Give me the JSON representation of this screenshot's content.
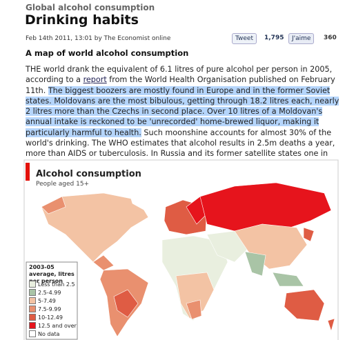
{
  "header": {
    "section": "Global alcohol consumption",
    "title": "Drinking habits",
    "byline": "Feb 14th 2011, 13:01 by The Economist online"
  },
  "social": {
    "tweet": "Tweet",
    "tweet_count": "1,795",
    "like": "J'aime",
    "like_count": "360"
  },
  "article": {
    "subheading": "A map of world alcohol consumption",
    "paragraph": {
      "intro": "THE world drank the equivalent of 6.1 litres of pure alcohol per person in 2005, according to a ",
      "link": "report",
      "after_link": " from the World Health Organisation published on February 11th. ",
      "highlighted": "The biggest boozers are mostly found in Europe and in the former Soviet states. Moldovans are the most bibulous, getting through 18.2 litres each, nearly 2 litres more than the Czechs in second place. Over 10 litres of a Moldovan's annual intake is reckoned to be 'unrecorded' home-brewed liquor, making it particularly harmful to health.",
      "rest": " Such moonshine accounts for almost 30% of the world's drinking. The WHO estimates that alcohol results in 2.5m deaths a year, more than AIDS or tuberculosis. In Russia and its former satellite states one in five male deaths is caused by drink."
    }
  },
  "map": {
    "title": "Alcohol consumption",
    "subtitle": "People aged 15+",
    "legend": {
      "title": "2003-05 average, litres per person",
      "items": [
        {
          "label": "Less than 2.5",
          "color": "#e9efdf"
        },
        {
          "label": "2.5-4.99",
          "color": "#a9c4a6"
        },
        {
          "label": "5-7.49",
          "color": "#f3c3a4"
        },
        {
          "label": "7.5-9.99",
          "color": "#e9906f"
        },
        {
          "label": "10-12.49",
          "color": "#df5c44"
        },
        {
          "label": "12.5 and over",
          "color": "#e6141c"
        },
        {
          "label": "No data",
          "color": "#ffffff"
        }
      ]
    }
  }
}
